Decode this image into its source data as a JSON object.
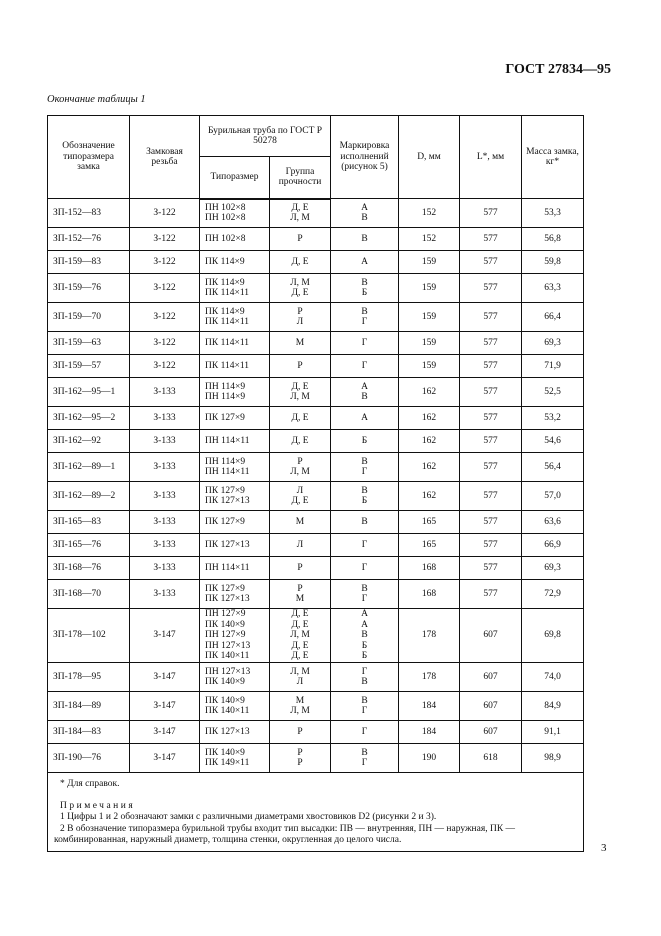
{
  "header": {
    "doc_title": "ГОСТ 27834—95"
  },
  "caption": "Окончание таблицы 1",
  "table": {
    "headers": {
      "designation": "Обозначение типоразмера замка",
      "thread": "Замковая резьба",
      "pipe_group": "Бурильная труба по ГОСТ Р 50278",
      "pipe_size": "Типоразмер",
      "strength": "Группа прочности",
      "marking": "Маркировка исполнений (рисунок 5)",
      "D": "D, мм",
      "L": "L*, мм",
      "mass": "Масса замка, кг*"
    },
    "rows": [
      {
        "designation": "ЗП-152—83",
        "thread": "З-122",
        "pipe": "ПН 102×8\nПН 102×8",
        "group": "Д, Е\nЛ, М",
        "marking": "А\nВ",
        "D": "152",
        "L": "577",
        "mass": "53,3"
      },
      {
        "designation": "ЗП-152—76",
        "thread": "З-122",
        "pipe": "ПН 102×8",
        "group": "Р",
        "marking": "В",
        "D": "152",
        "L": "577",
        "mass": "56,8"
      },
      {
        "designation": "ЗП-159—83",
        "thread": "З-122",
        "pipe": "ПК 114×9",
        "group": "Д, Е",
        "marking": "А",
        "D": "159",
        "L": "577",
        "mass": "59,8"
      },
      {
        "designation": "ЗП-159—76",
        "thread": "З-122",
        "pipe": "ПК 114×9\nПК 114×11",
        "group": "Л, М\nД, Е",
        "marking": "В\nБ",
        "D": "159",
        "L": "577",
        "mass": "63,3"
      },
      {
        "designation": "ЗП-159—70",
        "thread": "З-122",
        "pipe": "ПК 114×9\nПК 114×11",
        "group": "Р\nЛ",
        "marking": "В\nГ",
        "D": "159",
        "L": "577",
        "mass": "66,4"
      },
      {
        "designation": "ЗП-159—63",
        "thread": "З-122",
        "pipe": "ПК 114×11",
        "group": "М",
        "marking": "Г",
        "D": "159",
        "L": "577",
        "mass": "69,3"
      },
      {
        "designation": "ЗП-159—57",
        "thread": "З-122",
        "pipe": "ПК 114×11",
        "group": "Р",
        "marking": "Г",
        "D": "159",
        "L": "577",
        "mass": "71,9"
      },
      {
        "designation": "ЗП-162—95—1",
        "thread": "З-133",
        "pipe": "ПН 114×9\nПН 114×9",
        "group": "Д, Е\nЛ, М",
        "marking": "А\nВ",
        "D": "162",
        "L": "577",
        "mass": "52,5"
      },
      {
        "designation": "ЗП-162—95—2",
        "thread": "З-133",
        "pipe": "ПК 127×9",
        "group": "Д, Е",
        "marking": "А",
        "D": "162",
        "L": "577",
        "mass": "53,2"
      },
      {
        "designation": "ЗП-162—92",
        "thread": "З-133",
        "pipe": "ПН 114×11",
        "group": "Д, Е",
        "marking": "Б",
        "D": "162",
        "L": "577",
        "mass": "54,6"
      },
      {
        "designation": "ЗП-162—89—1",
        "thread": "З-133",
        "pipe": "ПН 114×9\nПН 114×11",
        "group": "Р\nЛ, М",
        "marking": "В\nГ",
        "D": "162",
        "L": "577",
        "mass": "56,4"
      },
      {
        "designation": "ЗП-162—89—2",
        "thread": "З-133",
        "pipe": "ПК 127×9\nПК 127×13",
        "group": "Л\nД, Е",
        "marking": "В\nБ",
        "D": "162",
        "L": "577",
        "mass": "57,0"
      },
      {
        "designation": "ЗП-165—83",
        "thread": "З-133",
        "pipe": "ПК 127×9",
        "group": "М",
        "marking": "В",
        "D": "165",
        "L": "577",
        "mass": "63,6"
      },
      {
        "designation": "ЗП-165—76",
        "thread": "З-133",
        "pipe": "ПК 127×13",
        "group": "Л",
        "marking": "Г",
        "D": "165",
        "L": "577",
        "mass": "66,9"
      },
      {
        "designation": "ЗП-168—76",
        "thread": "З-133",
        "pipe": "ПН 114×11",
        "group": "Р",
        "marking": "Г",
        "D": "168",
        "L": "577",
        "mass": "69,3"
      },
      {
        "designation": "ЗП-168—70",
        "thread": "З-133",
        "pipe": "ПК 127×9\nПК 127×13",
        "group": "Р\nМ",
        "marking": "В\nГ",
        "D": "168",
        "L": "577",
        "mass": "72,9"
      },
      {
        "designation": "ЗП-178—102",
        "thread": "З-147",
        "pipe": "ПН 127×9\nПК 140×9\nПН 127×9\nПН 127×13\nПК 140×11",
        "group": "Д, Е\nД, Е\nЛ, М\nД, Е\nД, Е",
        "marking": "А\nА\nВ\nБ\nБ",
        "D": "178",
        "L": "607",
        "mass": "69,8"
      },
      {
        "designation": "ЗП-178—95",
        "thread": "З-147",
        "pipe": "ПН 127×13\nПК 140×9",
        "group": "Л, М\nЛ",
        "marking": "Г\nВ",
        "D": "178",
        "L": "607",
        "mass": "74,0"
      },
      {
        "designation": "ЗП-184—89",
        "thread": "З-147",
        "pipe": "ПК 140×9\nПК 140×11",
        "group": "М\nЛ, М",
        "marking": "В\nГ",
        "D": "184",
        "L": "607",
        "mass": "84,9"
      },
      {
        "designation": "ЗП-184—83",
        "thread": "З-147",
        "pipe": "ПК 127×13",
        "group": "Р",
        "marking": "Г",
        "D": "184",
        "L": "607",
        "mass": "91,1"
      },
      {
        "designation": "ЗП-190—76",
        "thread": "З-147",
        "pipe": "ПК 140×9\nПК 149×11",
        "group": "Р\nР",
        "marking": "В\nГ",
        "D": "190",
        "L": "618",
        "mass": "98,9"
      }
    ],
    "footnote": "* Для справок.",
    "notes_title": "Примечания",
    "notes": [
      "1  Цифры 1 и 2 обозначают замки с различными диаметрами хвостовиков D2 (рисунки 2 и 3).",
      "2  В обозначение типоразмера бурильной трубы входит тип высадки: ПВ — внутренняя, ПН — наружная, ПК — комбинированная, наружный диаметр, толщина стенки, округленная до целого числа."
    ]
  },
  "page_number": "3"
}
